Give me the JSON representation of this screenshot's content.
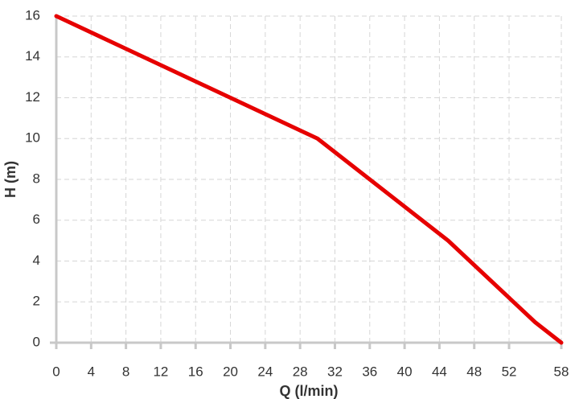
{
  "chart_data": {
    "type": "line",
    "x_label": "Q (l/min)",
    "y_label": "H (m)",
    "x": [
      0,
      30,
      45,
      55,
      58
    ],
    "series": [
      {
        "color": "#e60000",
        "values": [
          16,
          10,
          5,
          1,
          0
        ]
      }
    ],
    "xlim": [
      0,
      58
    ],
    "xticks": [
      0,
      4,
      8,
      12,
      16,
      20,
      24,
      28,
      32,
      36,
      40,
      44,
      48,
      52,
      58
    ],
    "ylim": [
      0,
      16
    ],
    "yticks": [
      0,
      2,
      4,
      6,
      8,
      10,
      12,
      14,
      16
    ],
    "grid": true
  }
}
